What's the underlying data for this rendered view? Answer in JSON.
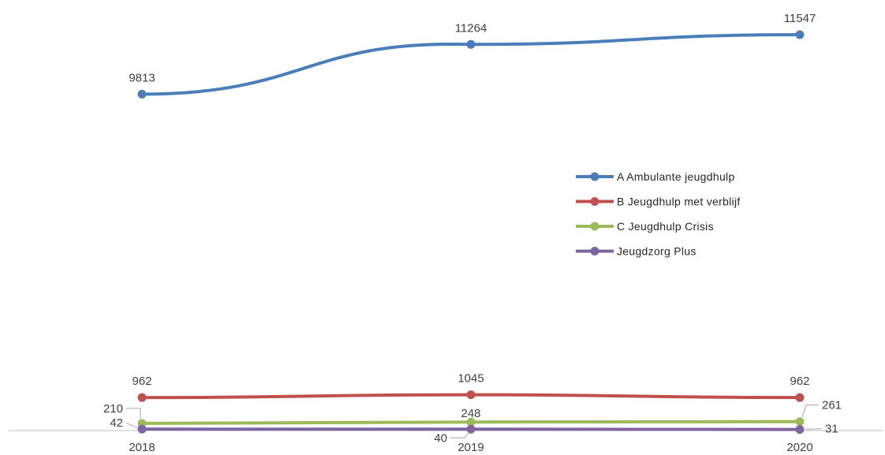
{
  "chart_data": {
    "type": "line",
    "categories": [
      "2018",
      "2019",
      "2020"
    ],
    "series": [
      {
        "name": "A Ambulante jeugdhulp",
        "values": [
          9813,
          11264,
          11547
        ],
        "color": "#4a7ebb"
      },
      {
        "name": "B Jeugdhulp met verblijf",
        "values": [
          962,
          1045,
          962
        ],
        "color": "#c0504d"
      },
      {
        "name": "C Jeugdhulp Crisis",
        "values": [
          210,
          248,
          261
        ],
        "color": "#9bbb59"
      },
      {
        "name": "Jeugdzorg Plus",
        "values": [
          42,
          40,
          31
        ],
        "color": "#8064a2"
      }
    ],
    "title": "",
    "xlabel": "",
    "ylabel": "",
    "ylim": [
      0,
      12000
    ],
    "grid": false,
    "legend": "center-right",
    "data_labels": true
  }
}
